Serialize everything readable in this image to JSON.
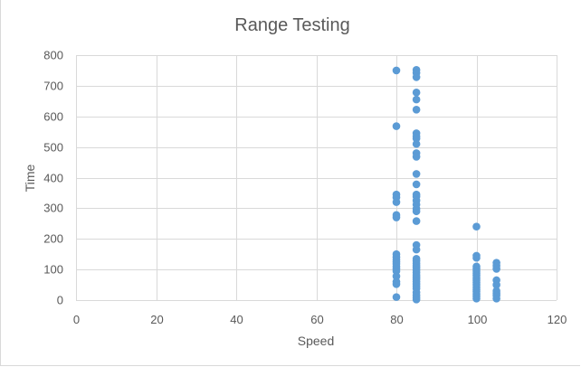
{
  "chart_data": {
    "type": "scatter",
    "title": "Range Testing",
    "xlabel": "Speed",
    "ylabel": "Time",
    "xlim": [
      0,
      120
    ],
    "ylim": [
      0,
      800
    ],
    "x_ticks": [
      0,
      20,
      40,
      60,
      80,
      100,
      120
    ],
    "y_ticks": [
      0,
      100,
      200,
      300,
      400,
      500,
      600,
      700,
      800
    ],
    "grid": true,
    "legend": "none",
    "marker_color": "#5b9bd5",
    "points": [
      {
        "x": 80,
        "y": 750
      },
      {
        "x": 80,
        "y": 568
      },
      {
        "x": 80,
        "y": 345
      },
      {
        "x": 80,
        "y": 335
      },
      {
        "x": 80,
        "y": 320
      },
      {
        "x": 80,
        "y": 278
      },
      {
        "x": 80,
        "y": 270
      },
      {
        "x": 80,
        "y": 150
      },
      {
        "x": 80,
        "y": 140
      },
      {
        "x": 80,
        "y": 132
      },
      {
        "x": 80,
        "y": 125
      },
      {
        "x": 80,
        "y": 118
      },
      {
        "x": 80,
        "y": 110
      },
      {
        "x": 80,
        "y": 102
      },
      {
        "x": 80,
        "y": 95
      },
      {
        "x": 80,
        "y": 78
      },
      {
        "x": 80,
        "y": 60
      },
      {
        "x": 80,
        "y": 52
      },
      {
        "x": 80,
        "y": 10
      },
      {
        "x": 85,
        "y": 752
      },
      {
        "x": 85,
        "y": 742
      },
      {
        "x": 85,
        "y": 728
      },
      {
        "x": 85,
        "y": 678
      },
      {
        "x": 85,
        "y": 655
      },
      {
        "x": 85,
        "y": 622
      },
      {
        "x": 85,
        "y": 545
      },
      {
        "x": 85,
        "y": 535
      },
      {
        "x": 85,
        "y": 528
      },
      {
        "x": 85,
        "y": 510
      },
      {
        "x": 85,
        "y": 480
      },
      {
        "x": 85,
        "y": 468
      },
      {
        "x": 85,
        "y": 412
      },
      {
        "x": 85,
        "y": 378
      },
      {
        "x": 85,
        "y": 345
      },
      {
        "x": 85,
        "y": 338
      },
      {
        "x": 85,
        "y": 325
      },
      {
        "x": 85,
        "y": 312
      },
      {
        "x": 85,
        "y": 298
      },
      {
        "x": 85,
        "y": 290
      },
      {
        "x": 85,
        "y": 258
      },
      {
        "x": 85,
        "y": 180
      },
      {
        "x": 85,
        "y": 165
      },
      {
        "x": 85,
        "y": 135
      },
      {
        "x": 85,
        "y": 128
      },
      {
        "x": 85,
        "y": 120
      },
      {
        "x": 85,
        "y": 112
      },
      {
        "x": 85,
        "y": 105
      },
      {
        "x": 85,
        "y": 98
      },
      {
        "x": 85,
        "y": 90
      },
      {
        "x": 85,
        "y": 82
      },
      {
        "x": 85,
        "y": 75
      },
      {
        "x": 85,
        "y": 68
      },
      {
        "x": 85,
        "y": 60
      },
      {
        "x": 85,
        "y": 52
      },
      {
        "x": 85,
        "y": 45
      },
      {
        "x": 85,
        "y": 38
      },
      {
        "x": 85,
        "y": 25
      },
      {
        "x": 85,
        "y": 15
      },
      {
        "x": 85,
        "y": 8
      },
      {
        "x": 85,
        "y": 2
      },
      {
        "x": 100,
        "y": 240
      },
      {
        "x": 100,
        "y": 145
      },
      {
        "x": 100,
        "y": 138
      },
      {
        "x": 100,
        "y": 110
      },
      {
        "x": 100,
        "y": 102
      },
      {
        "x": 100,
        "y": 95
      },
      {
        "x": 100,
        "y": 88
      },
      {
        "x": 100,
        "y": 80
      },
      {
        "x": 100,
        "y": 72
      },
      {
        "x": 100,
        "y": 65
      },
      {
        "x": 100,
        "y": 58
      },
      {
        "x": 100,
        "y": 50
      },
      {
        "x": 100,
        "y": 42
      },
      {
        "x": 100,
        "y": 35
      },
      {
        "x": 100,
        "y": 28
      },
      {
        "x": 100,
        "y": 20
      },
      {
        "x": 100,
        "y": 12
      },
      {
        "x": 100,
        "y": 5
      },
      {
        "x": 105,
        "y": 122
      },
      {
        "x": 105,
        "y": 112
      },
      {
        "x": 105,
        "y": 102
      },
      {
        "x": 105,
        "y": 65
      },
      {
        "x": 105,
        "y": 50
      },
      {
        "x": 105,
        "y": 30
      },
      {
        "x": 105,
        "y": 22
      },
      {
        "x": 105,
        "y": 15
      },
      {
        "x": 105,
        "y": 5
      }
    ]
  }
}
